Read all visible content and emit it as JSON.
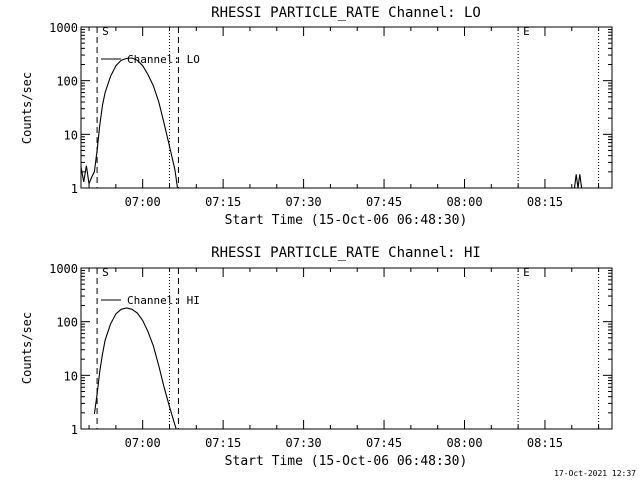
{
  "footer_timestamp": "17-Oct-2021 12:37",
  "chart_data": [
    {
      "type": "line",
      "title": "RHESSI PARTICLE_RATE Channel: LO",
      "xlabel": "Start Time (15-Oct-06 06:48:30)",
      "ylabel": "Counts/sec",
      "yscale": "log",
      "ylim": [
        1,
        1000
      ],
      "xlim": [
        "06:48:30",
        "08:27:30"
      ],
      "x_ticks": [
        "07:00",
        "07:15",
        "07:30",
        "07:45",
        "08:00",
        "08:15"
      ],
      "y_ticks": [
        "1",
        "10",
        "100",
        "1000"
      ],
      "legend": "Channel: LO",
      "legend_position": "top-left",
      "markers": [
        {
          "label": "S",
          "time": "06:51:30",
          "style": "dashed"
        },
        {
          "label": "",
          "time": "07:05:00",
          "style": "dotted"
        },
        {
          "label": "",
          "time": "07:06:40",
          "style": "dashed"
        },
        {
          "label": "E",
          "time": "08:10:00",
          "style": "dotted"
        },
        {
          "label": "",
          "time": "08:25:00",
          "style": "dotted"
        }
      ],
      "series": [
        {
          "name": "Channel: LO",
          "points": [
            [
              "06:48:30",
              2.5
            ],
            [
              "06:49:00",
              1.3
            ],
            [
              "06:49:30",
              2.6
            ],
            [
              "06:50:00",
              1.2
            ],
            [
              "06:50:30",
              1.6
            ],
            [
              "06:51:00",
              2.0
            ],
            [
              "06:51:30",
              5.0
            ],
            [
              "06:52:00",
              15
            ],
            [
              "06:52:30",
              35
            ],
            [
              "06:53:00",
              60
            ],
            [
              "06:54:00",
              120
            ],
            [
              "06:55:00",
              190
            ],
            [
              "06:56:00",
              240
            ],
            [
              "06:57:00",
              260
            ],
            [
              "06:58:00",
              265
            ],
            [
              "06:59:00",
              240
            ],
            [
              "07:00:00",
              190
            ],
            [
              "07:01:00",
              130
            ],
            [
              "07:02:00",
              80
            ],
            [
              "07:03:00",
              40
            ],
            [
              "07:04:00",
              16
            ],
            [
              "07:05:00",
              6
            ],
            [
              "07:06:00",
              2.2
            ],
            [
              "07:06:30",
              1.0
            ]
          ]
        },
        {
          "name": "",
          "points": [
            [
              "08:20:30",
              1.0
            ],
            [
              "08:20:50",
              1.8
            ],
            [
              "08:21:10",
              1.0
            ],
            [
              "08:21:30",
              1.8
            ],
            [
              "08:21:50",
              1.0
            ]
          ]
        }
      ]
    },
    {
      "type": "line",
      "title": "RHESSI PARTICLE_RATE Channel: HI",
      "xlabel": "Start Time (15-Oct-06 06:48:30)",
      "ylabel": "Counts/sec",
      "yscale": "log",
      "ylim": [
        1,
        1000
      ],
      "xlim": [
        "06:48:30",
        "08:27:30"
      ],
      "x_ticks": [
        "07:00",
        "07:15",
        "07:30",
        "07:45",
        "08:00",
        "08:15"
      ],
      "y_ticks": [
        "1",
        "10",
        "100",
        "1000"
      ],
      "legend": "Channel: HI",
      "legend_position": "top-left",
      "markers": [
        {
          "label": "S",
          "time": "06:51:30",
          "style": "dashed"
        },
        {
          "label": "",
          "time": "07:05:00",
          "style": "dotted"
        },
        {
          "label": "",
          "time": "07:06:40",
          "style": "dashed"
        },
        {
          "label": "E",
          "time": "08:10:00",
          "style": "dotted"
        },
        {
          "label": "",
          "time": "08:25:00",
          "style": "dotted"
        }
      ],
      "series": [
        {
          "name": "Channel: HI",
          "points": [
            [
              "06:51:00",
              1.9
            ],
            [
              "06:51:30",
              4.5
            ],
            [
              "06:52:00",
              12
            ],
            [
              "06:52:30",
              25
            ],
            [
              "06:53:00",
              45
            ],
            [
              "06:54:00",
              90
            ],
            [
              "06:55:00",
              140
            ],
            [
              "06:56:00",
              170
            ],
            [
              "06:57:00",
              180
            ],
            [
              "06:58:00",
              170
            ],
            [
              "06:59:00",
              145
            ],
            [
              "07:00:00",
              105
            ],
            [
              "07:01:00",
              65
            ],
            [
              "07:02:00",
              35
            ],
            [
              "07:03:00",
              15
            ],
            [
              "07:04:00",
              6
            ],
            [
              "07:05:00",
              2.6
            ],
            [
              "07:06:00",
              1.2
            ],
            [
              "07:06:15",
              1.0
            ]
          ]
        }
      ]
    }
  ]
}
